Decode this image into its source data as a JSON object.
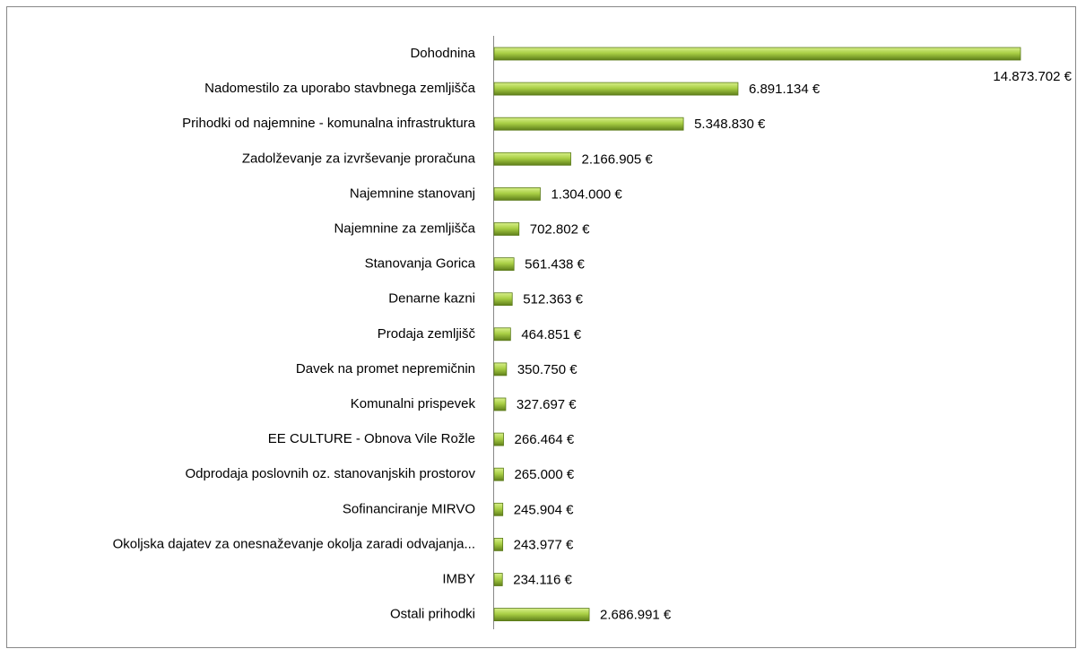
{
  "chart_data": {
    "type": "barh",
    "categories": [
      "Dohodnina",
      "Nadomestilo za uporabo stavbnega zemljišča",
      "Prihodki od najemnine - komunalna infrastruktura",
      "Zadolževanje za izvrševanje proračuna",
      "Najemnine stanovanj",
      "Najemnine za zemljišča",
      "Stanovanja Gorica",
      "Denarne kazni",
      "Prodaja zemljišč",
      "Davek na promet nepremičnin",
      "Komunalni prispevek",
      "EE CULTURE - Obnova Vile Rožle",
      "Odprodaja poslovnih oz. stanovanjskih prostorov",
      "Sofinanciranje MIRVO",
      "Okoljska dajatev za onesnaževanje okolja zaradi odvajanja...",
      "IMBY",
      "Ostali prihodki"
    ],
    "values": [
      14873702,
      6891134,
      5348830,
      2166905,
      1304000,
      702802,
      561438,
      512363,
      464851,
      350750,
      327697,
      266464,
      265000,
      245904,
      243977,
      234116,
      2686991
    ],
    "value_labels": [
      "14.873.702 €",
      "6.891.134 €",
      "5.348.830 €",
      "2.166.905 €",
      "1.304.000 €",
      "702.802 €",
      "561.438 €",
      "512.363 €",
      "464.851 €",
      "350.750 €",
      "327.697 €",
      "266.464 €",
      "265.000 €",
      "245.904 €",
      "243.977 €",
      "234.116 €",
      "2.686.991 €"
    ],
    "color": "#9acd32"
  }
}
